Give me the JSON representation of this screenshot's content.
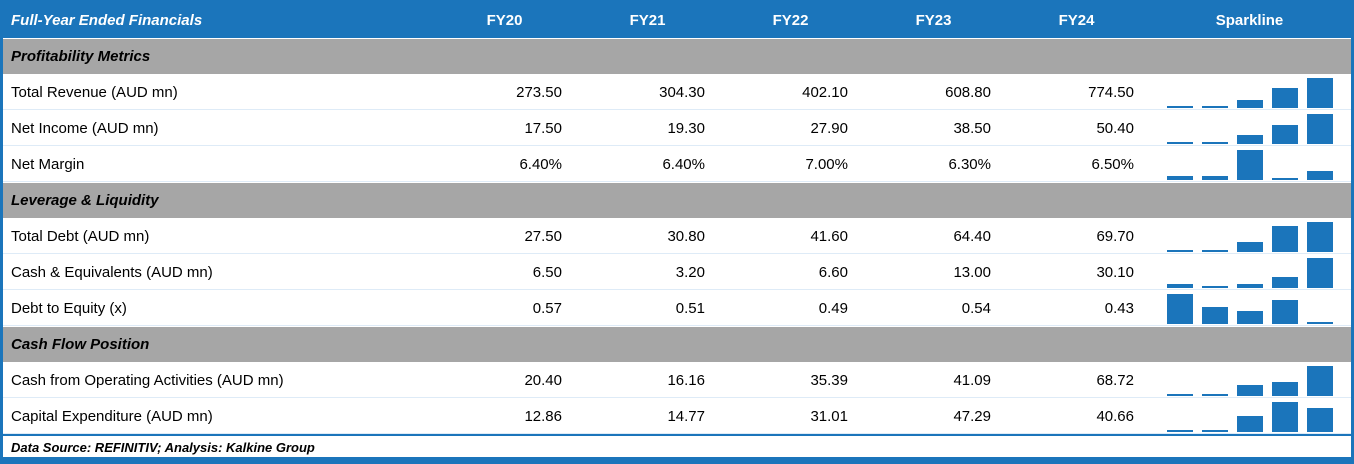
{
  "header": {
    "title": "Full-Year Ended Financials",
    "columns": [
      "FY20",
      "FY21",
      "FY22",
      "FY23",
      "FY24"
    ],
    "sparkline_label": "Sparkline"
  },
  "colors": {
    "accent_blue": "#1B75BB",
    "section_gray": "#A6A6A6",
    "row_separator": "#DEEBF7",
    "header_text": "#ffffff",
    "body_text": "#000000"
  },
  "sections": [
    {
      "title": "Profitability Metrics",
      "rows": [
        {
          "label": "Total Revenue (AUD mn)",
          "values": [
            "273.50",
            "304.30",
            "402.10",
            "608.80",
            "774.50"
          ],
          "numeric": [
            273.5,
            304.3,
            402.1,
            608.8,
            774.5
          ]
        },
        {
          "label": "Net Income (AUD mn)",
          "values": [
            "17.50",
            "19.30",
            "27.90",
            "38.50",
            "50.40"
          ],
          "numeric": [
            17.5,
            19.3,
            27.9,
            38.5,
            50.4
          ]
        },
        {
          "label": "Net Margin",
          "values": [
            "6.40%",
            "6.40%",
            "7.00%",
            "6.30%",
            "6.50%"
          ],
          "numeric": [
            6.4,
            6.4,
            7.0,
            6.3,
            6.5
          ]
        }
      ]
    },
    {
      "title": "Leverage & Liquidity",
      "rows": [
        {
          "label": "Total Debt (AUD mn)",
          "values": [
            "27.50",
            "30.80",
            "41.60",
            "64.40",
            "69.70"
          ],
          "numeric": [
            27.5,
            30.8,
            41.6,
            64.4,
            69.7
          ]
        },
        {
          "label": "Cash & Equivalents (AUD mn)",
          "values": [
            "6.50",
            "3.20",
            "6.60",
            "13.00",
            "30.10"
          ],
          "numeric": [
            6.5,
            3.2,
            6.6,
            13.0,
            30.1
          ]
        },
        {
          "label": "Debt to Equity (x)",
          "values": [
            "0.57",
            "0.51",
            "0.49",
            "0.54",
            "0.43"
          ],
          "numeric": [
            0.57,
            0.51,
            0.49,
            0.54,
            0.43
          ]
        }
      ]
    },
    {
      "title": "Cash Flow Position",
      "rows": [
        {
          "label": "Cash from Operating Activities (AUD mn)",
          "values": [
            "20.40",
            "16.16",
            "35.39",
            "41.09",
            "68.72"
          ],
          "numeric": [
            20.4,
            16.16,
            35.39,
            41.09,
            68.72
          ]
        },
        {
          "label": "Capital Expenditure (AUD mn)",
          "values": [
            "12.86",
            "14.77",
            "31.01",
            "47.29",
            "40.66"
          ],
          "numeric": [
            12.86,
            14.77,
            31.01,
            47.29,
            40.66
          ]
        }
      ]
    }
  ],
  "footer": {
    "text": "Data Source: REFINITIV; Analysis: Kalkine Group"
  },
  "chart_data": {
    "type": "table",
    "title": "Full-Year Ended Financials",
    "categories": [
      "FY20",
      "FY21",
      "FY22",
      "FY23",
      "FY24"
    ],
    "series": [
      {
        "name": "Total Revenue (AUD mn)",
        "section": "Profitability Metrics",
        "values": [
          273.5,
          304.3,
          402.1,
          608.8,
          774.5
        ]
      },
      {
        "name": "Net Income (AUD mn)",
        "section": "Profitability Metrics",
        "values": [
          17.5,
          19.3,
          27.9,
          38.5,
          50.4
        ]
      },
      {
        "name": "Net Margin (%)",
        "section": "Profitability Metrics",
        "values": [
          6.4,
          6.4,
          7.0,
          6.3,
          6.5
        ]
      },
      {
        "name": "Total Debt (AUD mn)",
        "section": "Leverage & Liquidity",
        "values": [
          27.5,
          30.8,
          41.6,
          64.4,
          69.7
        ]
      },
      {
        "name": "Cash & Equivalents (AUD mn)",
        "section": "Leverage & Liquidity",
        "values": [
          6.5,
          3.2,
          6.6,
          13.0,
          30.1
        ]
      },
      {
        "name": "Debt to Equity (x)",
        "section": "Leverage & Liquidity",
        "values": [
          0.57,
          0.51,
          0.49,
          0.54,
          0.43
        ]
      },
      {
        "name": "Cash from Operating Activities (AUD mn)",
        "section": "Cash Flow Position",
        "values": [
          20.4,
          16.16,
          35.39,
          41.09,
          68.72
        ]
      },
      {
        "name": "Capital Expenditure (AUD mn)",
        "section": "Cash Flow Position",
        "values": [
          12.86,
          14.77,
          31.01,
          47.29,
          40.66
        ]
      }
    ],
    "sparkline": {
      "type": "bar",
      "scaling": "min-max per row",
      "color": "#1B75BB",
      "legend_position": "none",
      "grid": false
    }
  }
}
